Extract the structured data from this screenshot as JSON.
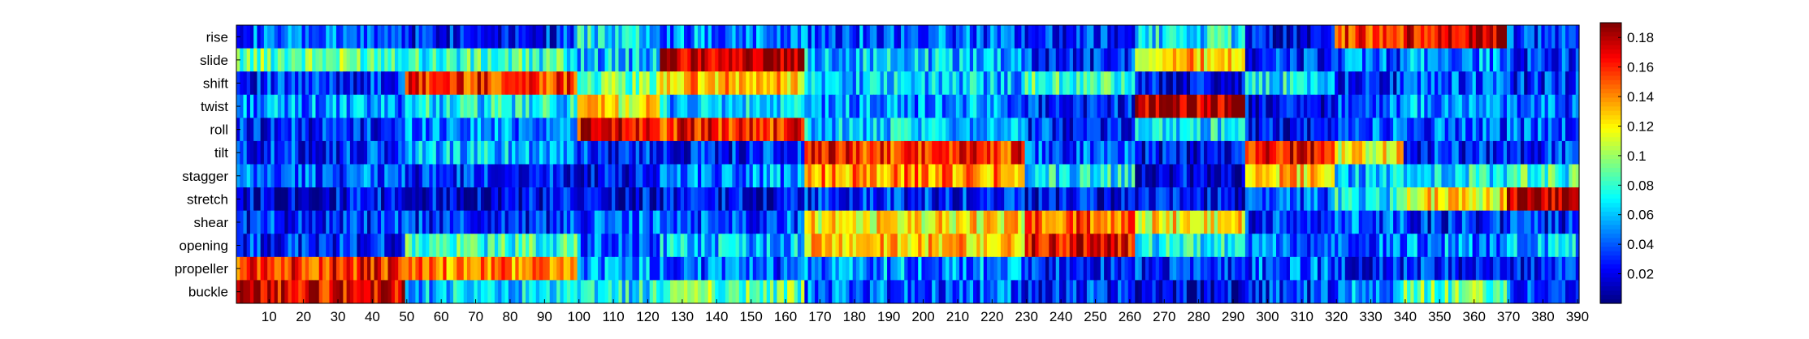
{
  "chart_data": {
    "type": "heatmap",
    "title": "",
    "xlabel": "",
    "ylabel": "",
    "rows": [
      "rise",
      "slide",
      "shift",
      "twist",
      "roll",
      "tilt",
      "stagger",
      "stretch",
      "shear",
      "opening",
      "propeller",
      "buckle"
    ],
    "x_range": [
      1,
      390
    ],
    "x_ticks": [
      10,
      20,
      30,
      40,
      50,
      60,
      70,
      80,
      90,
      100,
      110,
      120,
      130,
      140,
      150,
      160,
      170,
      180,
      190,
      200,
      210,
      220,
      230,
      240,
      250,
      260,
      270,
      280,
      290,
      300,
      310,
      320,
      330,
      340,
      350,
      360,
      370,
      380,
      390
    ],
    "colorbar": {
      "colormap": "jet",
      "range": [
        0,
        0.19
      ],
      "ticks": [
        "0.02",
        "0.04",
        "0.06",
        "0.08",
        "0.1",
        "0.12",
        "0.14",
        "0.16",
        "0.18"
      ]
    },
    "block_boundaries": [
      1,
      50,
      100,
      124,
      166,
      230,
      262,
      294,
      320,
      340,
      370,
      391
    ],
    "segments": {
      "rise": [
        [
          1,
          50,
          0.04
        ],
        [
          50,
          100,
          0.03
        ],
        [
          100,
          124,
          0.07
        ],
        [
          124,
          166,
          0.05
        ],
        [
          166,
          230,
          0.04
        ],
        [
          230,
          262,
          0.03
        ],
        [
          262,
          294,
          0.07
        ],
        [
          294,
          320,
          0.02
        ],
        [
          320,
          340,
          0.16
        ],
        [
          340,
          370,
          0.17
        ],
        [
          370,
          391,
          0.03
        ]
      ],
      "slide": [
        [
          1,
          50,
          0.09
        ],
        [
          50,
          100,
          0.08
        ],
        [
          100,
          124,
          0.06
        ],
        [
          124,
          166,
          0.18
        ],
        [
          166,
          230,
          0.06
        ],
        [
          230,
          262,
          0.03
        ],
        [
          262,
          294,
          0.13
        ],
        [
          294,
          320,
          0.03
        ],
        [
          320,
          340,
          0.04
        ],
        [
          340,
          370,
          0.05
        ],
        [
          370,
          391,
          0.03
        ]
      ],
      "shift": [
        [
          1,
          50,
          0.03
        ],
        [
          50,
          100,
          0.16
        ],
        [
          100,
          124,
          0.09
        ],
        [
          124,
          166,
          0.13
        ],
        [
          166,
          230,
          0.06
        ],
        [
          230,
          262,
          0.08
        ],
        [
          262,
          294,
          0.02
        ],
        [
          294,
          320,
          0.07
        ],
        [
          320,
          340,
          0.03
        ],
        [
          340,
          370,
          0.04
        ],
        [
          370,
          391,
          0.03
        ]
      ],
      "twist": [
        [
          1,
          50,
          0.05
        ],
        [
          50,
          100,
          0.07
        ],
        [
          100,
          124,
          0.12
        ],
        [
          124,
          166,
          0.06
        ],
        [
          166,
          230,
          0.05
        ],
        [
          230,
          262,
          0.03
        ],
        [
          262,
          294,
          0.18
        ],
        [
          294,
          320,
          0.02
        ],
        [
          320,
          340,
          0.04
        ],
        [
          340,
          370,
          0.05
        ],
        [
          370,
          391,
          0.04
        ]
      ],
      "roll": [
        [
          1,
          50,
          0.03
        ],
        [
          50,
          100,
          0.05
        ],
        [
          100,
          124,
          0.17
        ],
        [
          124,
          166,
          0.16
        ],
        [
          166,
          230,
          0.06
        ],
        [
          230,
          262,
          0.03
        ],
        [
          262,
          294,
          0.07
        ],
        [
          294,
          320,
          0.02
        ],
        [
          320,
          340,
          0.04
        ],
        [
          340,
          370,
          0.04
        ],
        [
          370,
          391,
          0.04
        ]
      ],
      "tilt": [
        [
          1,
          50,
          0.03
        ],
        [
          50,
          100,
          0.06
        ],
        [
          100,
          124,
          0.03
        ],
        [
          124,
          166,
          0.03
        ],
        [
          166,
          230,
          0.16
        ],
        [
          230,
          262,
          0.04
        ],
        [
          262,
          294,
          0.02
        ],
        [
          294,
          320,
          0.17
        ],
        [
          320,
          340,
          0.12
        ],
        [
          340,
          370,
          0.03
        ],
        [
          370,
          391,
          0.03
        ]
      ],
      "stagger": [
        [
          1,
          50,
          0.04
        ],
        [
          50,
          100,
          0.03
        ],
        [
          100,
          124,
          0.02
        ],
        [
          124,
          166,
          0.05
        ],
        [
          166,
          230,
          0.14
        ],
        [
          230,
          262,
          0.07
        ],
        [
          262,
          294,
          0.02
        ],
        [
          294,
          320,
          0.13
        ],
        [
          320,
          340,
          0.06
        ],
        [
          340,
          370,
          0.07
        ],
        [
          370,
          391,
          0.08
        ]
      ],
      "stretch": [
        [
          1,
          50,
          0.02
        ],
        [
          50,
          100,
          0.02
        ],
        [
          100,
          124,
          0.02
        ],
        [
          124,
          166,
          0.02
        ],
        [
          166,
          230,
          0.03
        ],
        [
          230,
          262,
          0.02
        ],
        [
          262,
          294,
          0.02
        ],
        [
          294,
          320,
          0.04
        ],
        [
          320,
          340,
          0.07
        ],
        [
          340,
          370,
          0.12
        ],
        [
          370,
          391,
          0.18
        ]
      ],
      "shear": [
        [
          1,
          50,
          0.03
        ],
        [
          50,
          100,
          0.03
        ],
        [
          100,
          124,
          0.04
        ],
        [
          124,
          166,
          0.04
        ],
        [
          166,
          230,
          0.12
        ],
        [
          230,
          262,
          0.15
        ],
        [
          262,
          294,
          0.12
        ],
        [
          294,
          320,
          0.03
        ],
        [
          320,
          340,
          0.04
        ],
        [
          340,
          370,
          0.03
        ],
        [
          370,
          391,
          0.03
        ]
      ],
      "opening": [
        [
          1,
          50,
          0.03
        ],
        [
          50,
          100,
          0.08
        ],
        [
          100,
          124,
          0.04
        ],
        [
          124,
          166,
          0.06
        ],
        [
          166,
          230,
          0.13
        ],
        [
          230,
          262,
          0.17
        ],
        [
          262,
          294,
          0.07
        ],
        [
          294,
          320,
          0.04
        ],
        [
          320,
          340,
          0.04
        ],
        [
          340,
          370,
          0.05
        ],
        [
          370,
          391,
          0.06
        ]
      ],
      "propeller": [
        [
          1,
          50,
          0.16
        ],
        [
          50,
          100,
          0.14
        ],
        [
          100,
          124,
          0.05
        ],
        [
          124,
          166,
          0.04
        ],
        [
          166,
          230,
          0.05
        ],
        [
          230,
          262,
          0.03
        ],
        [
          262,
          294,
          0.03
        ],
        [
          294,
          320,
          0.04
        ],
        [
          320,
          340,
          0.03
        ],
        [
          340,
          370,
          0.03
        ],
        [
          370,
          391,
          0.03
        ]
      ],
      "buckle": [
        [
          1,
          50,
          0.17
        ],
        [
          50,
          100,
          0.06
        ],
        [
          100,
          124,
          0.07
        ],
        [
          124,
          166,
          0.09
        ],
        [
          166,
          230,
          0.04
        ],
        [
          230,
          262,
          0.03
        ],
        [
          262,
          294,
          0.02
        ],
        [
          294,
          320,
          0.03
        ],
        [
          320,
          340,
          0.05
        ],
        [
          340,
          370,
          0.09
        ],
        [
          370,
          391,
          0.04
        ]
      ]
    }
  }
}
